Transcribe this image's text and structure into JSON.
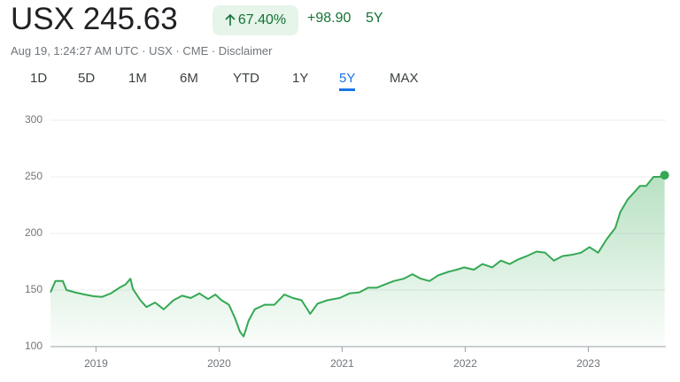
{
  "header": {
    "price": "USX 245.63",
    "change_percent": "67.40%",
    "change": "+98.90",
    "period": "5Y",
    "timestamp": "Aug 19, 1:24:27 AM UTC · USX · CME · Disclaimer",
    "tabs": [
      "1D",
      "5D",
      "1M",
      "6M",
      "YTD",
      "1Y",
      "5Y",
      "MAX"
    ],
    "selected_tab": "5Y"
  },
  "chart_data": {
    "type": "line",
    "xlim": [
      2018.63,
      2023.63
    ],
    "xticks": [
      2019,
      2020,
      2021,
      2022,
      2023
    ],
    "ylim": [
      100,
      300
    ],
    "yticks": [
      100,
      150,
      200,
      250,
      300
    ],
    "grid": true,
    "series": [
      {
        "name": "USX",
        "color": "#34a853",
        "x": [
          2018.63,
          2018.67,
          2018.73,
          2018.76,
          2018.83,
          2018.91,
          2018.98,
          2019.05,
          2019.12,
          2019.19,
          2019.24,
          2019.28,
          2019.3,
          2019.36,
          2019.41,
          2019.48,
          2019.55,
          2019.63,
          2019.7,
          2019.77,
          2019.84,
          2019.91,
          2019.97,
          2020.02,
          2020.08,
          2020.13,
          2020.17,
          2020.2,
          2020.24,
          2020.29,
          2020.37,
          2020.45,
          2020.53,
          2020.6,
          2020.67,
          2020.74,
          2020.8,
          2020.88,
          2020.98,
          2021.06,
          2021.14,
          2021.21,
          2021.28,
          2021.35,
          2021.42,
          2021.5,
          2021.57,
          2021.64,
          2021.71,
          2021.78,
          2021.86,
          2021.93,
          2021.99,
          2022.07,
          2022.14,
          2022.22,
          2022.29,
          2022.36,
          2022.43,
          2022.5,
          2022.58,
          2022.65,
          2022.72,
          2022.79,
          2022.86,
          2022.94,
          2023.01,
          2023.08,
          2023.15,
          2023.22,
          2023.26,
          2023.32,
          2023.37,
          2023.42,
          2023.47,
          2023.53,
          2023.58,
          2023.62
        ],
        "values": [
          148,
          158,
          158,
          150,
          148,
          146,
          144.5,
          144,
          147,
          152,
          155,
          160,
          151,
          141,
          135,
          139,
          133,
          141,
          145,
          143,
          147,
          142,
          146,
          141,
          137,
          125,
          113,
          109,
          123,
          133,
          137,
          137,
          146,
          143,
          141,
          129,
          138,
          141,
          143,
          147,
          148,
          152,
          152,
          155,
          158,
          160,
          164,
          160,
          158,
          163,
          166,
          168,
          170,
          168,
          173,
          170,
          176,
          173,
          177,
          180,
          184,
          183,
          176,
          180,
          181,
          183,
          188,
          183,
          195,
          205,
          219,
          230,
          236,
          242,
          242,
          250,
          250,
          251.5
        ]
      }
    ]
  }
}
